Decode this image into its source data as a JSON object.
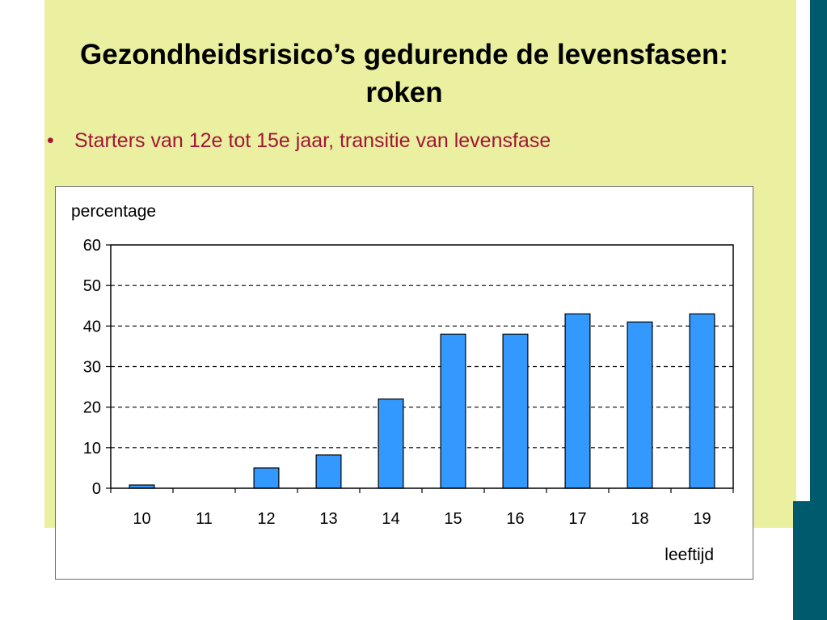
{
  "slide": {
    "title_line1": "Gezondheidsrisico’s gedurende de levensfasen:",
    "title_line2": "roken",
    "bullet": "Starters van 12e tot 15e jaar, transitie van levensfase"
  },
  "colors": {
    "background": "#eaf09f",
    "accent_bar": "#005a6e",
    "bullet_text": "#a31538",
    "bar_fill": "#3399ff"
  },
  "chart_data": {
    "type": "bar",
    "ylabel": "percentage",
    "xlabel": "leeftijd",
    "categories": [
      "10",
      "11",
      "12",
      "13",
      "14",
      "15",
      "16",
      "17",
      "18",
      "19"
    ],
    "values": [
      0.8,
      0,
      5,
      8.2,
      22,
      38,
      38,
      43,
      41,
      43
    ],
    "ylim": [
      0,
      60
    ],
    "yticks": [
      0,
      10,
      20,
      30,
      40,
      50,
      60
    ],
    "grid": "dashed horizontal"
  }
}
